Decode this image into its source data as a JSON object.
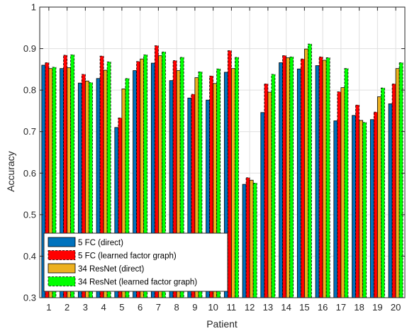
{
  "chart_data": {
    "type": "bar",
    "title": "",
    "xlabel": "Patient",
    "ylabel": "Accuracy",
    "ylim": [
      0.3,
      1.0
    ],
    "yticks": [
      "0.3",
      "0.4",
      "0.5",
      "0.6",
      "0.7",
      "0.8",
      "0.9",
      "1"
    ],
    "grid": true,
    "legend_position": "bottom-left",
    "categories": [
      "1",
      "2",
      "3",
      "4",
      "5",
      "6",
      "7",
      "8",
      "9",
      "10",
      "11",
      "12",
      "13",
      "14",
      "15",
      "16",
      "17",
      "18",
      "19",
      "20"
    ],
    "series": [
      {
        "name": "5 FC (direct)",
        "color": "#0072BD",
        "style": "solid",
        "values": [
          0.86,
          0.852,
          0.817,
          0.828,
          0.71,
          0.847,
          0.865,
          0.823,
          0.781,
          0.776,
          0.843,
          0.573,
          0.746,
          0.866,
          0.851,
          0.859,
          0.726,
          0.739,
          0.729,
          0.767
        ]
      },
      {
        "name": "5 FC (learned factor graph)",
        "color": "#FF0000",
        "style": "dashed",
        "values": [
          0.866,
          0.884,
          0.838,
          0.882,
          0.733,
          0.869,
          0.907,
          0.871,
          0.79,
          0.834,
          0.895,
          0.589,
          0.815,
          0.883,
          0.875,
          0.88,
          0.796,
          0.764,
          0.747,
          0.815
        ]
      },
      {
        "name": "34 ResNet (direct)",
        "color": "#EDB120",
        "style": "solid",
        "values": [
          0.852,
          0.854,
          0.822,
          0.848,
          0.803,
          0.875,
          0.883,
          0.847,
          0.83,
          0.816,
          0.852,
          0.583,
          0.795,
          0.878,
          0.899,
          0.872,
          0.806,
          0.727,
          0.784,
          0.852
        ]
      },
      {
        "name": "34 ResNet  (learned factor graph)",
        "color": "#00FF00",
        "style": "dashed",
        "values": [
          0.855,
          0.885,
          0.818,
          0.868,
          0.828,
          0.885,
          0.892,
          0.879,
          0.844,
          0.851,
          0.879,
          0.576,
          0.838,
          0.88,
          0.911,
          0.878,
          0.852,
          0.722,
          0.805,
          0.866
        ]
      }
    ]
  }
}
